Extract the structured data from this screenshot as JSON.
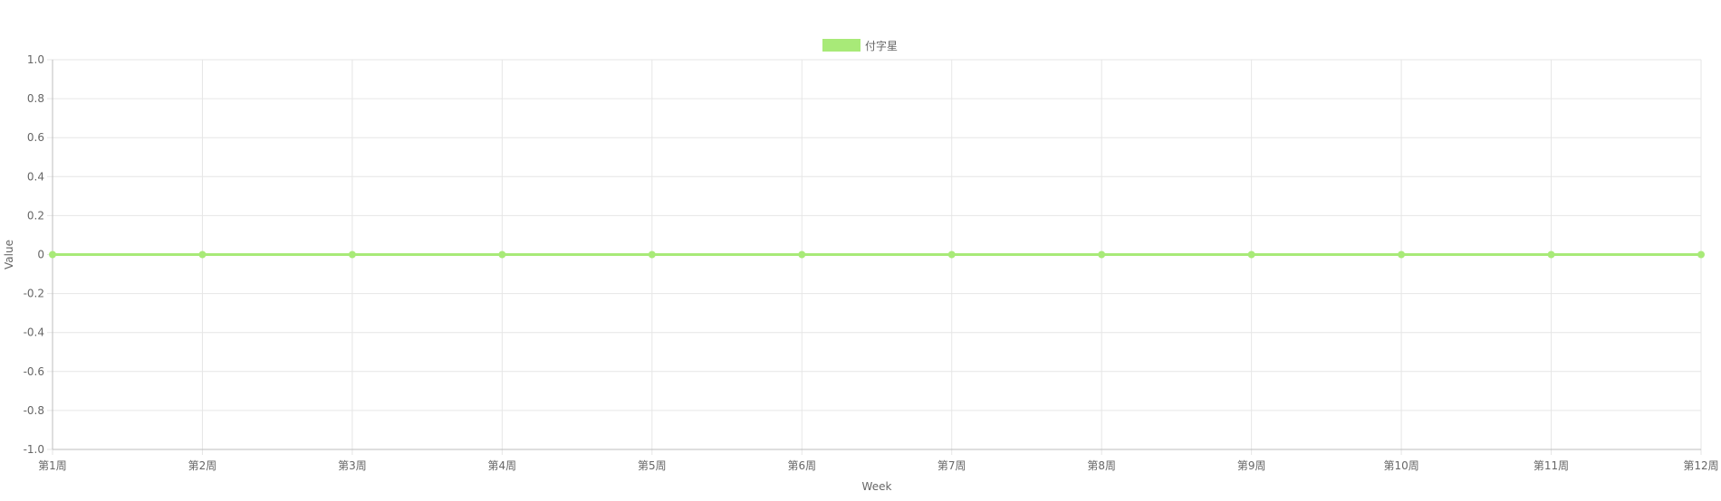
{
  "chart_data": {
    "type": "line",
    "categories": [
      "第1周",
      "第2周",
      "第3周",
      "第4周",
      "第5周",
      "第6周",
      "第7周",
      "第8周",
      "第9周",
      "第10周",
      "第11周",
      "第12周"
    ],
    "series": [
      {
        "name": "付字星",
        "values": [
          0,
          0,
          0,
          0,
          0,
          0,
          0,
          0,
          0,
          0,
          0,
          0
        ],
        "color": "#a8ea78"
      }
    ],
    "xlabel": "Week",
    "ylabel": "Value",
    "ylim": [
      -1.0,
      1.0
    ],
    "yticks": [
      "1.0",
      "0.8",
      "0.6",
      "0.4",
      "0.2",
      "0",
      "-0.2",
      "-0.4",
      "-0.6",
      "-0.8",
      "-1.0"
    ],
    "grid": true,
    "legend": "top-center"
  },
  "colors": {
    "grid": "#e6e6e6",
    "axis": "#bdbdbd",
    "text": "#666666"
  }
}
